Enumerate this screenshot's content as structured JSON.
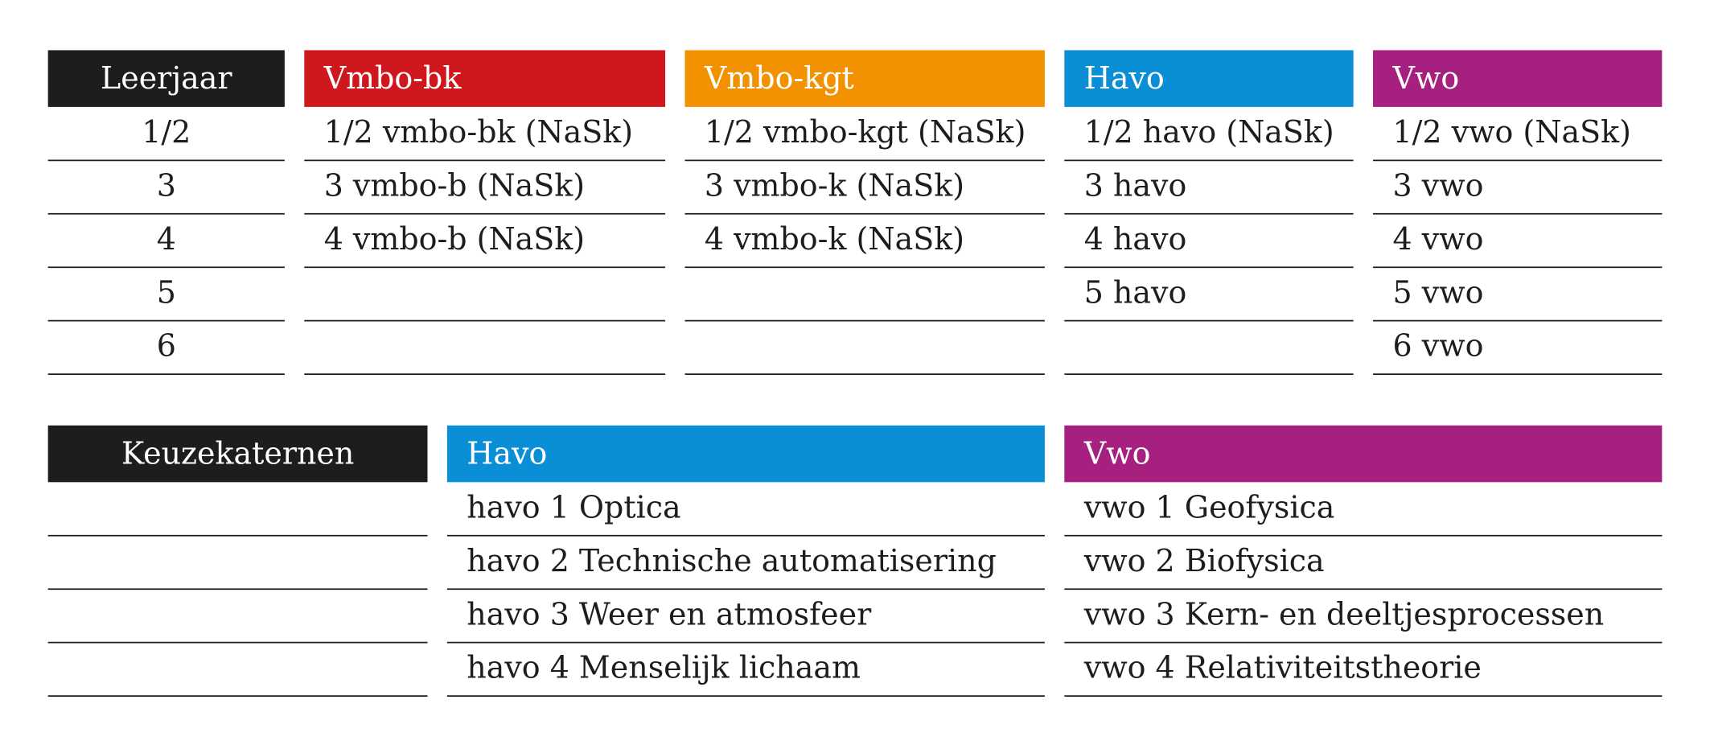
{
  "table1": {
    "headers": [
      "Leerjaar",
      "Vmbo-bk",
      "Vmbo-kgt",
      "Havo",
      "Vwo"
    ],
    "rows": [
      [
        "1/2",
        "1/2 vmbo-bk (NaSk)",
        "1/2 vmbo-kgt (NaSk)",
        "1/2 havo (NaSk)",
        "1/2 vwo (NaSk)"
      ],
      [
        "3",
        "3 vmbo-b (NaSk)",
        "3 vmbo-k (NaSk)",
        "3 havo",
        "3 vwo"
      ],
      [
        "4",
        "4 vmbo-b (NaSk)",
        "4 vmbo-k (NaSk)",
        "4 havo",
        "4 vwo"
      ],
      [
        "5",
        null,
        null,
        "5 havo",
        "5 vwo"
      ],
      [
        "6",
        null,
        null,
        null,
        "6 vwo"
      ]
    ]
  },
  "table2": {
    "headers": [
      "Keuzekaternen",
      "Havo",
      "Vwo"
    ],
    "rows": [
      [
        null,
        "havo 1 Optica",
        "vwo 1 Geofysica"
      ],
      [
        null,
        "havo 2 Technische automatisering",
        "vwo 2 Biofysica"
      ],
      [
        null,
        "havo 3 Weer en atmosfeer",
        "vwo 3 Kern- en deeltjesprocessen"
      ],
      [
        null,
        "havo 4 Menselijk lichaam",
        "vwo 4 Relativiteitstheorie"
      ]
    ]
  }
}
